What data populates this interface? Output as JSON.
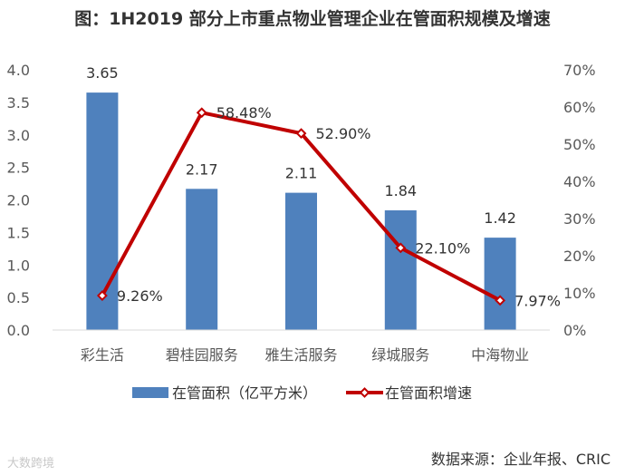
{
  "title": "图：1H2019 部分上市重点物业管理企业在管面积规模及增速",
  "source": "数据来源：企业年报、CRIC",
  "watermark": "大数跨境",
  "colors": {
    "bar": "#4f81bd",
    "line": "#c00000",
    "axis": "#595959"
  },
  "chart_data": {
    "type": "bar",
    "categories": [
      "彩生活",
      "碧桂园服务",
      "雅生活服务",
      "绿城服务",
      "中海物业"
    ],
    "series": [
      {
        "name": "在管面积（亿平方米）",
        "type": "bar",
        "axis": "left",
        "values": [
          3.65,
          2.17,
          2.11,
          1.84,
          1.42
        ],
        "labels": [
          "3.65",
          "2.17",
          "2.11",
          "1.84",
          "1.42"
        ]
      },
      {
        "name": "在管面积增速",
        "type": "line",
        "axis": "right",
        "values": [
          9.26,
          58.48,
          52.9,
          22.1,
          7.97
        ],
        "labels": [
          "9.26%",
          "58.48%",
          "52.90%",
          "22.10%",
          "7.97%"
        ]
      }
    ],
    "y_left": {
      "ylim": [
        0,
        4.0
      ],
      "ticks": [
        "0.0",
        "0.5",
        "1.0",
        "1.5",
        "2.0",
        "2.5",
        "3.0",
        "3.5",
        "4.0"
      ]
    },
    "y_right": {
      "ylim": [
        0,
        70
      ],
      "ticks": [
        "0%",
        "10%",
        "20%",
        "30%",
        "40%",
        "50%",
        "60%",
        "70%"
      ]
    },
    "grid": false,
    "legend": "bottom"
  }
}
